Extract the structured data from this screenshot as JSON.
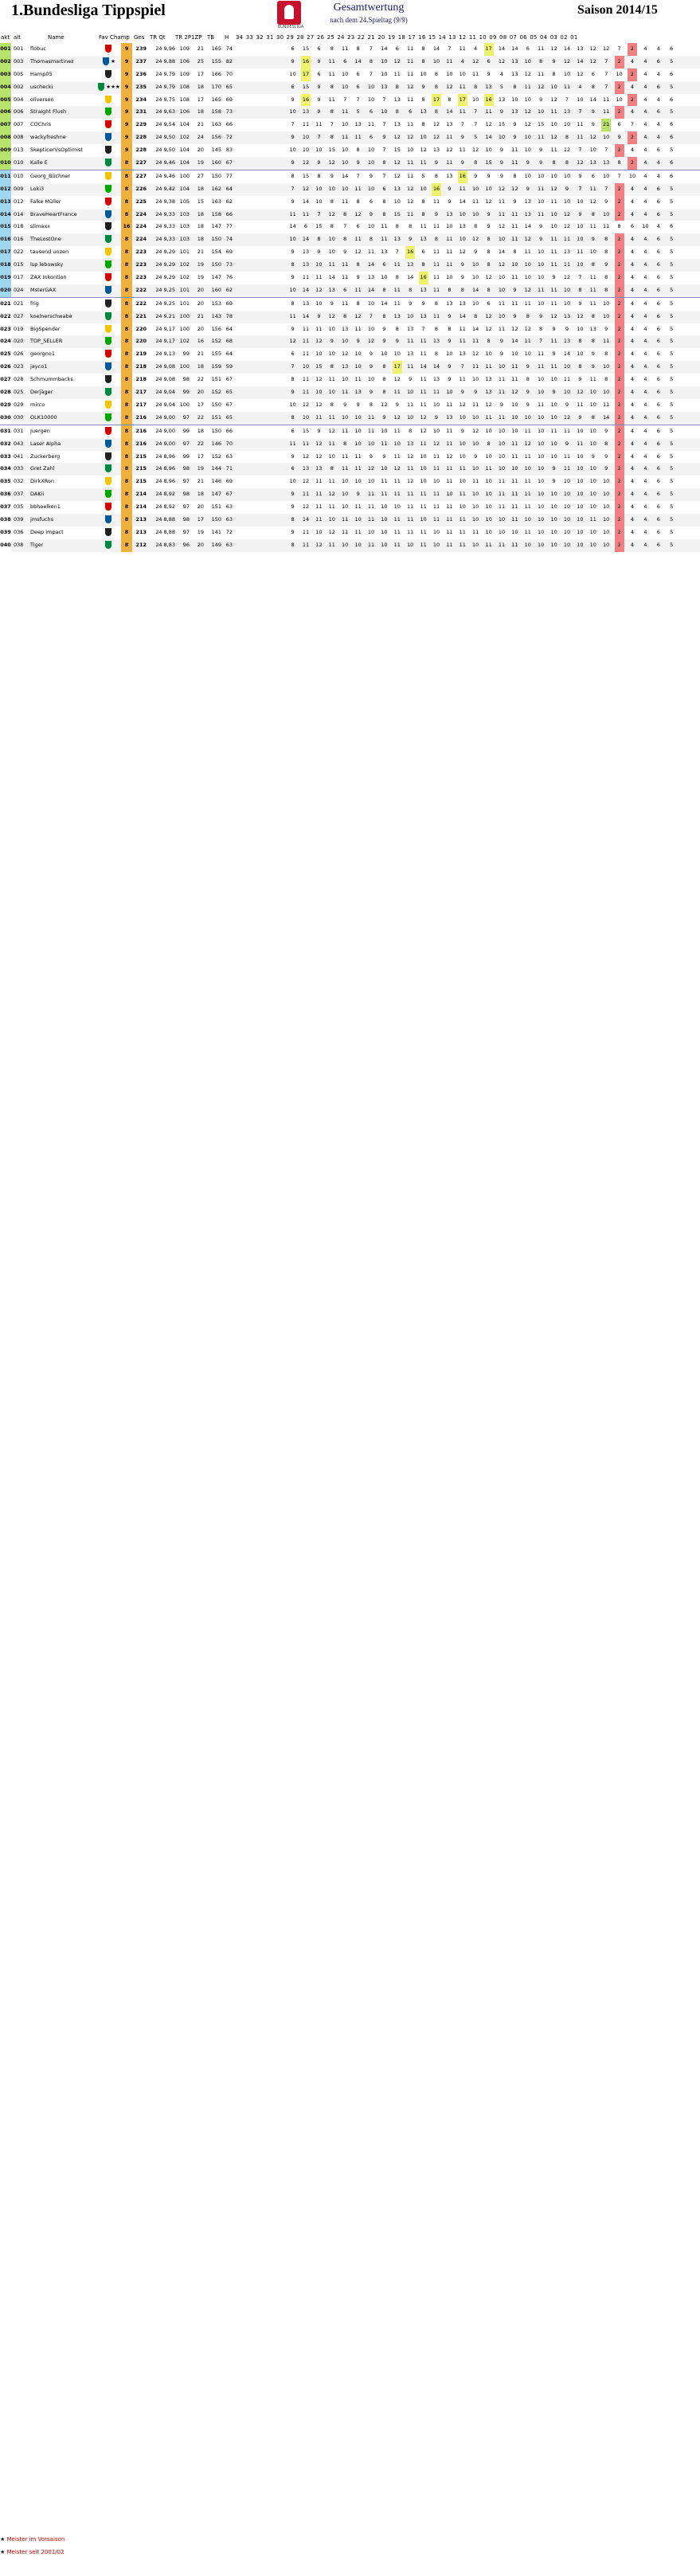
{
  "header": {
    "title": "1.Bundesliga Tippspiel",
    "logo_caption": "BUNDESLIGA",
    "subtitle": "Gesamtwertung",
    "subtitle2": "nach dem 24.Spieltag (9/9)",
    "season": "Saison 2014/15"
  },
  "columns": {
    "rank": "akt",
    "prev": "alt",
    "name": "Name",
    "fav": "Fav",
    "champ": "Champ",
    "wins": "",
    "ges": "Ges",
    "trq": "TR Qt",
    "v2p": "TR 2P",
    "v1zp": "1ZP",
    "tb": "TB",
    "hi": "H",
    "matchdays": "34 33 32 31 30 29 28 27 26 25 24 23 22 21 20 19 18 17 16 15 14 13 12 11 10 09 08 07 06 05 04 03 02 01"
  },
  "colors": {
    "band": "#f3f3f3",
    "separator": "#8888cc",
    "highlight_yellow": "#ecf36b",
    "highlight_green": "#b7e36a",
    "highlight_red": "#f08080",
    "missing_blue": "#b9dfee",
    "legend_red": "#cc0000"
  },
  "rows": [
    {
      "rk": "001",
      "pl": "001",
      "name": "flobuc",
      "fav": "",
      "champ": "",
      "wins": "9",
      "ges": "239",
      "trq": "24 9,96",
      "v2p": "109",
      "v1zp": "21",
      "tb": "165",
      "hi": "74",
      "md": "6 15 6 8 11 8 7 14 6 11 8 14 7 11 4 17 14 14 6 11 12 14 13 12 12 7 2 4 4 6"
    },
    {
      "rk": "002",
      "pl": "003",
      "name": "Thomasmartinez",
      "fav": "",
      "champ": "star",
      "wins": "9",
      "ges": "237",
      "trq": "24 9,88",
      "v2p": "106",
      "v1zp": "25",
      "tb": "155",
      "hi": "82",
      "md": "9 16 9 11 6 14 8 10 12 11 8 10 11 4 12 6 12 13 10 8 9 12 14 12 7 2 4 4 6 5"
    },
    {
      "rk": "003",
      "pl": "005",
      "name": "Hamp05",
      "fav": "",
      "champ": "",
      "wins": "9",
      "ges": "236",
      "trq": "24 9,79",
      "v2p": "109",
      "v1zp": "17",
      "tb": "166",
      "hi": "70",
      "md": "10 17 6 11 10 6 7 10 11 11 10 8 10 10 11 9 4 13 12 11 8 10 12 6 7 10 2 4 4 6"
    },
    {
      "rk": "004",
      "pl": "002",
      "name": "uschecki",
      "fav": "",
      "champ": "stars",
      "wins": "9",
      "ges": "235",
      "trq": "24 9,79",
      "v2p": "108",
      "v1zp": "18",
      "tb": "170",
      "hi": "65",
      "md": "6 15 9 8 10 6 10 13 8 12 9 8 12 11 8 13 5 8 11 12 10 11 4 8 7 2 4 4 6 5"
    },
    {
      "rk": "005",
      "pl": "004",
      "name": "oliversen",
      "fav": "",
      "champ": "",
      "wins": "9",
      "ges": "234",
      "trq": "24 9,75",
      "v2p": "108",
      "v1zp": "17",
      "tb": "165",
      "hi": "69",
      "md": "9 16 9 11 7 7 10 7 13 11 8 17 8 17 10 16 13 10 10 9 12 7 10 14 11 10 2 4 4 6"
    },
    {
      "rk": "006",
      "pl": "006",
      "name": "Straight Flush",
      "fav": "",
      "champ": "",
      "wins": "9",
      "ges": "231",
      "trq": "24 9,63",
      "v2p": "106",
      "v1zp": "18",
      "tb": "158",
      "hi": "73",
      "md": "10 13 9 8 11 5 6 10 8 6 13 8 14 11 7 11 9 13 12 10 11 13 7 9 11 2 4 4 6 5"
    },
    {
      "rk": "007",
      "pl": "007",
      "name": "COChris",
      "fav": "",
      "champ": "",
      "wins": "9",
      "ges": "229",
      "trq": "24 9,54",
      "v2p": "104",
      "v1zp": "21",
      "tb": "163",
      "hi": "66",
      "md": "7 11 11 7 10 13 11 7 13 11 8 12 13 7 7 12 15 9 12 15 10 10 11 9 21 6 7 4 4 6"
    },
    {
      "rk": "008",
      "pl": "008",
      "name": "wackyfreshne",
      "fav": "",
      "champ": "",
      "wins": "9",
      "ges": "228",
      "trq": "24 9,50",
      "v2p": "102",
      "v1zp": "24",
      "tb": "156",
      "hi": "72",
      "md": "9 10 7 8 11 11 6 9 12 12 10 12 11 9 5 14 10 9 10 11 12 8 11 12 10 9 2 4 4 6"
    },
    {
      "rk": "009",
      "pl": "013",
      "name": "SkepticerVsOptimist",
      "fav": "",
      "champ": "",
      "wins": "9",
      "ges": "228",
      "trq": "24 9,50",
      "v2p": "104",
      "v1zp": "20",
      "tb": "145",
      "hi": "83",
      "md": "10 10 10 15 10 8 10 7 15 10 12 13 12 11 12 10 9 11 10 9 11 12 7 10 7 2 4 4 6 5"
    },
    {
      "rk": "010",
      "pl": "010",
      "name": "Kalle E",
      "fav": "",
      "champ": "",
      "wins": "8",
      "ges": "227",
      "trq": "24 9,46",
      "v2p": "104",
      "v1zp": "19",
      "tb": "160",
      "hi": "67",
      "md": "9 12 9 12 10 9 10 8 12 11 11 9 11 9 8 15 9 11 9 9 8 8 12 13 13 8 2 4 4 6"
    },
    {
      "rk": "011",
      "pl": "010",
      "name": "Georg_Büchner",
      "fav": "",
      "champ": "",
      "wins": "8",
      "ges": "227",
      "trq": "24 9,46",
      "v2p": "100",
      "v1zp": "27",
      "tb": "150",
      "hi": "77",
      "md": "8 15 8 9 14 7 9 7 12 11 5 8 13 16 9 9 9 8 10 10 10 10 9 6 10 7 10 4 4 6"
    },
    {
      "rk": "012",
      "pl": "009",
      "name": "Loki3",
      "fav": "",
      "champ": "",
      "wins": "8",
      "ges": "226",
      "trq": "24 9,42",
      "v2p": "104",
      "v1zp": "18",
      "tb": "162",
      "hi": "64",
      "md": "7 12 10 10 10 11 10 6 13 12 10 16 9 11 10 10 12 12 9 11 12 9 7 11 7 2 4 4 6 5"
    },
    {
      "rk": "013",
      "pl": "012",
      "name": "Falke Müller",
      "fav": "",
      "champ": "",
      "wins": "8",
      "ges": "225",
      "trq": "24 9,38",
      "v2p": "105",
      "v1zp": "15",
      "tb": "163",
      "hi": "62",
      "md": "9 14 10 8 11 8 6 8 10 12 8 11 9 14 11 12 11 9 13 10 11 10 10 12 9 2 4 4 6 5"
    },
    {
      "rk": "014",
      "pl": "014",
      "name": "BraveHeartFrance",
      "fav": "",
      "champ": "",
      "wins": "8",
      "ges": "224",
      "trq": "24 9,33",
      "v2p": "103",
      "v1zp": "18",
      "tb": "158",
      "hi": "66",
      "md": "11 11 7 12 8 12 9 8 15 11 8 9 13 10 10 9 11 11 13 11 10 12 9 8 10 2 4 4 6 5"
    },
    {
      "rk": "015",
      "pl": "018",
      "name": "slimaxx",
      "fav": "",
      "champ": "",
      "wins": "16",
      "ges": "224",
      "trq": "24 9,33",
      "v2p": "103",
      "v1zp": "18",
      "tb": "147",
      "hi": "77",
      "md": "14 6 15 8 7 6 10 11 8 8 11 11 10 13 8 9 12 11 14 9 10 12 10 11 11 8 6 10 4 6"
    },
    {
      "rk": "016",
      "pl": "016",
      "name": "TheLostOne",
      "fav": "",
      "champ": "",
      "wins": "8",
      "ges": "224",
      "trq": "24 9,33",
      "v2p": "103",
      "v1zp": "18",
      "tb": "150",
      "hi": "74",
      "md": "10 14 8 10 8 11 8 11 13 9 13 8 11 10 12 8 10 11 12 9 11 11 10 9 8 2 4 4 6 5"
    },
    {
      "rk": "017",
      "pl": "022",
      "name": "tausend unzen",
      "fav": "",
      "champ": "",
      "wins": "8",
      "ges": "223",
      "trq": "24 9,29",
      "v2p": "101",
      "v1zp": "21",
      "tb": "154",
      "hi": "69",
      "md": "9 13 9 10 9 12 11 13 7 16 6 11 11 12 9 8 14 8 11 10 11 13 11 10 8 2 4 4 6 5"
    },
    {
      "rk": "018",
      "pl": "015",
      "name": "lsp lebowsky",
      "fav": "",
      "champ": "",
      "wins": "8",
      "ges": "223",
      "trq": "24 9,29",
      "v2p": "102",
      "v1zp": "19",
      "tb": "150",
      "hi": "73",
      "md": "8 13 10 11 11 8 14 6 11 13 8 11 11 9 10 8 12 10 10 10 11 11 10 8 9 2 4 4 6 5"
    },
    {
      "rk": "019",
      "pl": "017",
      "name": "ZAX Inkontion",
      "fav": "",
      "champ": "",
      "wins": "8",
      "ges": "223",
      "trq": "24 9,29",
      "v2p": "102",
      "v1zp": "19",
      "tb": "147",
      "hi": "76",
      "md": "9 11 11 14 11 9 13 10 8 14 16 11 10 9 10 12 10 11 10 10 9 12 7 11 8 2 4 4 6 5"
    },
    {
      "rk": "020",
      "pl": "024",
      "name": "MsterGAX",
      "fav": "",
      "champ": "",
      "wins": "8",
      "ges": "222",
      "trq": "24 9,25",
      "v2p": "101",
      "v1zp": "20",
      "tb": "160",
      "hi": "62",
      "md": "10 14 12 13 6 11 14 8 11 8 13 11 8 8 14 8 10 9 12 11 11 10 8 11 8 2 4 4 6 5"
    },
    {
      "rk": "021",
      "pl": "021",
      "name": "frig",
      "fav": "",
      "champ": "",
      "wins": "8",
      "ges": "222",
      "trq": "24 9,25",
      "v2p": "101",
      "v1zp": "20",
      "tb": "153",
      "hi": "69",
      "md": "8 13 10 9 11 8 10 14 11 9 9 8 13 13 10 6 11 11 11 10 11 10 9 11 10 2 4 4 6 5"
    },
    {
      "rk": "022",
      "pl": "027",
      "name": "koelnerschwabe",
      "fav": "",
      "champ": "",
      "wins": "8",
      "ges": "221",
      "trq": "24 9,21",
      "v2p": "100",
      "v1zp": "21",
      "tb": "143",
      "hi": "78",
      "md": "11 14 9 12 8 12 7 8 13 10 13 11 9 14 8 12 10 9 8 9 12 13 12 8 10 2 4 4 6 5"
    },
    {
      "rk": "023",
      "pl": "019",
      "name": "BigSpender",
      "fav": "",
      "champ": "",
      "wins": "8",
      "ges": "220",
      "trq": "24 9,17",
      "v2p": "100",
      "v1zp": "20",
      "tb": "156",
      "hi": "64",
      "md": "9 11 11 10 13 11 10 9 8 13 7 8 8 11 14 12 11 12 12 8 9 9 10 13 9 2 4 4 6 5"
    },
    {
      "rk": "024",
      "pl": "020",
      "name": "TOP_SELLER",
      "fav": "",
      "champ": "",
      "wins": "8",
      "ges": "220",
      "trq": "24 9,17",
      "v2p": "102",
      "v1zp": "16",
      "tb": "152",
      "hi": "68",
      "md": "12 11 12 9 10 9 12 9 9 11 11 13 9 11 11 8 9 14 11 7 11 13 8 8 11 2 4 4 6 5"
    },
    {
      "rk": "025",
      "pl": "026",
      "name": "georgno1",
      "fav": "",
      "champ": "",
      "wins": "8",
      "ges": "219",
      "trq": "24 9,13",
      "v2p": "99",
      "v1zp": "21",
      "tb": "155",
      "hi": "64",
      "md": "6 11 10 10 12 10 9 10 10 13 11 8 10 13 12 10 9 10 10 11 9 14 10 9 8 2 4 4 6 5"
    },
    {
      "rk": "026",
      "pl": "023",
      "name": "jayco1",
      "fav": "",
      "champ": "",
      "wins": "8",
      "ges": "218",
      "trq": "24 9,08",
      "v2p": "100",
      "v1zp": "18",
      "tb": "159",
      "hi": "59",
      "md": "7 10 15 8 13 10 9 8 17 11 14 14 9 7 11 11 10 11 9 11 11 10 8 9 10 2 4 4 6 5"
    },
    {
      "rk": "027",
      "pl": "028",
      "name": "Schmummbacks",
      "fav": "",
      "champ": "",
      "wins": "8",
      "ges": "218",
      "trq": "24 9,08",
      "v2p": "98",
      "v1zp": "22",
      "tb": "151",
      "hi": "67",
      "md": "8 11 12 11 10 11 10 8 12 9 11 13 9 11 10 13 11 11 8 10 10 11 9 11 8 2 4 4 6 5"
    },
    {
      "rk": "028",
      "pl": "025",
      "name": "Derjäger",
      "fav": "",
      "champ": "",
      "wins": "8",
      "ges": "217",
      "trq": "24 9,04",
      "v2p": "99",
      "v1zp": "20",
      "tb": "152",
      "hi": "65",
      "md": "9 11 10 10 11 13 9 8 11 10 11 11 10 9 9 13 11 12 9 10 9 10 12 10 10 2 4 4 6 5"
    },
    {
      "rk": "029",
      "pl": "029",
      "name": "mirco",
      "fav": "",
      "champ": "",
      "wins": "8",
      "ges": "217",
      "trq": "24 9,04",
      "v2p": "100",
      "v1zp": "17",
      "tb": "150",
      "hi": "67",
      "md": "10 12 12 8 9 9 8 12 9 11 11 10 11 12 11 12 9 10 9 11 10 9 11 10 11 2 4 4 6 5"
    },
    {
      "rk": "030",
      "pl": "030",
      "name": "OLK10000",
      "fav": "",
      "champ": "",
      "wins": "8",
      "ges": "216",
      "trq": "24 9,00",
      "v2p": "97",
      "v1zp": "22",
      "tb": "151",
      "hi": "65",
      "md": "8 10 11 11 10 10 11 9 12 10 12 9 13 10 10 11 11 10 10 10 10 12 9 8 14 2 4 4 6 5"
    },
    {
      "rk": "031",
      "pl": "031",
      "name": "Juergen",
      "fav": "",
      "champ": "",
      "wins": "8",
      "ges": "216",
      "trq": "24 9,00",
      "v2p": "99",
      "v1zp": "18",
      "tb": "150",
      "hi": "66",
      "md": "6 15 9 12 11 10 11 10 11 8 12 10 11 9 12 10 10 10 11 10 11 11 10 10 9 2 4 4 6 5"
    },
    {
      "rk": "032",
      "pl": "043",
      "name": "Laser Alpha",
      "fav": "",
      "champ": "",
      "wins": "8",
      "ges": "216",
      "trq": "24 9,00",
      "v2p": "97",
      "v1zp": "22",
      "tb": "146",
      "hi": "70",
      "md": "11 11 12 11 8 10 10 11 10 13 11 12 11 10 10 8 10 11 12 10 10 9 11 10 8 2 4 4 6 5"
    },
    {
      "rk": "033",
      "pl": "041",
      "name": "Zuckerberg",
      "fav": "",
      "champ": "",
      "wins": "8",
      "ges": "215",
      "trq": "24 8,96",
      "v2p": "99",
      "v1zp": "17",
      "tb": "152",
      "hi": "63",
      "md": "9 12 12 10 11 11 9 9 11 12 10 11 12 10 9 10 10 11 11 10 10 11 10 9 9 2 4 4 6 5"
    },
    {
      "rk": "034",
      "pl": "033",
      "name": "Gret Zahl",
      "fav": "",
      "champ": "",
      "wins": "8",
      "ges": "215",
      "trq": "24 8,96",
      "v2p": "98",
      "v1zp": "19",
      "tb": "144",
      "hi": "71",
      "md": "6 13 13 8 11 11 12 10 12 11 10 11 11 11 10 11 10 10 10 10 9 11 10 10 9 2 4 4 6 5"
    },
    {
      "rk": "035",
      "pl": "032",
      "name": "DirkXRon",
      "fav": "",
      "champ": "",
      "wins": "8",
      "ges": "215",
      "trq": "24 8,96",
      "v2p": "97",
      "v1zp": "21",
      "tb": "146",
      "hi": "69",
      "md": "10 12 11 11 10 10 10 11 11 12 10 10 11 10 11 10 11 11 11 10 9 10 10 10 10 2 4 4 6 5"
    },
    {
      "rk": "036",
      "pl": "037",
      "name": "DAKii",
      "fav": "",
      "champ": "",
      "wins": "8",
      "ges": "214",
      "trq": "24 8,92",
      "v2p": "98",
      "v1zp": "18",
      "tb": "147",
      "hi": "67",
      "md": "9 11 11 12 10 9 11 11 11 11 11 11 10 11 10 10 11 11 11 10 10 10 10 10 10 2 4 4 6 5"
    },
    {
      "rk": "037",
      "pl": "035",
      "name": "bbhoelken1",
      "fav": "",
      "champ": "",
      "wins": "8",
      "ges": "214",
      "trq": "24 8,92",
      "v2p": "97",
      "v1zp": "20",
      "tb": "151",
      "hi": "63",
      "md": "9 12 11 11 10 11 11 10 10 11 11 11 11 10 10 10 11 11 11 10 10 10 10 10 10 2 4 4 6 5"
    },
    {
      "rk": "038",
      "pl": "039",
      "name": "jmsfuchs",
      "fav": "",
      "champ": "",
      "wins": "8",
      "ges": "213",
      "trq": "24 8,88",
      "v2p": "98",
      "v1zp": "17",
      "tb": "150",
      "hi": "63",
      "md": "8 14 11 10 11 10 11 10 11 11 10 11 11 11 10 10 10 11 10 10 10 10 10 11 10 2 4 4 6 5"
    },
    {
      "rk": "039",
      "pl": "036",
      "name": "Deep Impact",
      "fav": "",
      "champ": "",
      "wins": "8",
      "ges": "213",
      "trq": "24 8,88",
      "v2p": "97",
      "v1zp": "19",
      "tb": "141",
      "hi": "72",
      "md": "9 11 10 12 11 11 10 10 11 11 11 10 11 11 11 10 10 10 11 10 10 10 10 10 10 2 4 4 6 5"
    },
    {
      "rk": "040",
      "pl": "038",
      "name": "Tiger",
      "fav": "",
      "champ": "",
      "wins": "8",
      "ges": "212",
      "trq": "24 8,83",
      "v2p": "96",
      "v1zp": "20",
      "tb": "149",
      "hi": "63",
      "md": "8 11 12 11 10 10 11 10 11 10 11 10 11 11 10 11 11 11 10 10 10 10 10 10 10 2 4 4 6 5"
    }
  ],
  "legend": {
    "star_label": "Meister im Vorsaison",
    "champ_label": "Meister seit 2001/02"
  }
}
